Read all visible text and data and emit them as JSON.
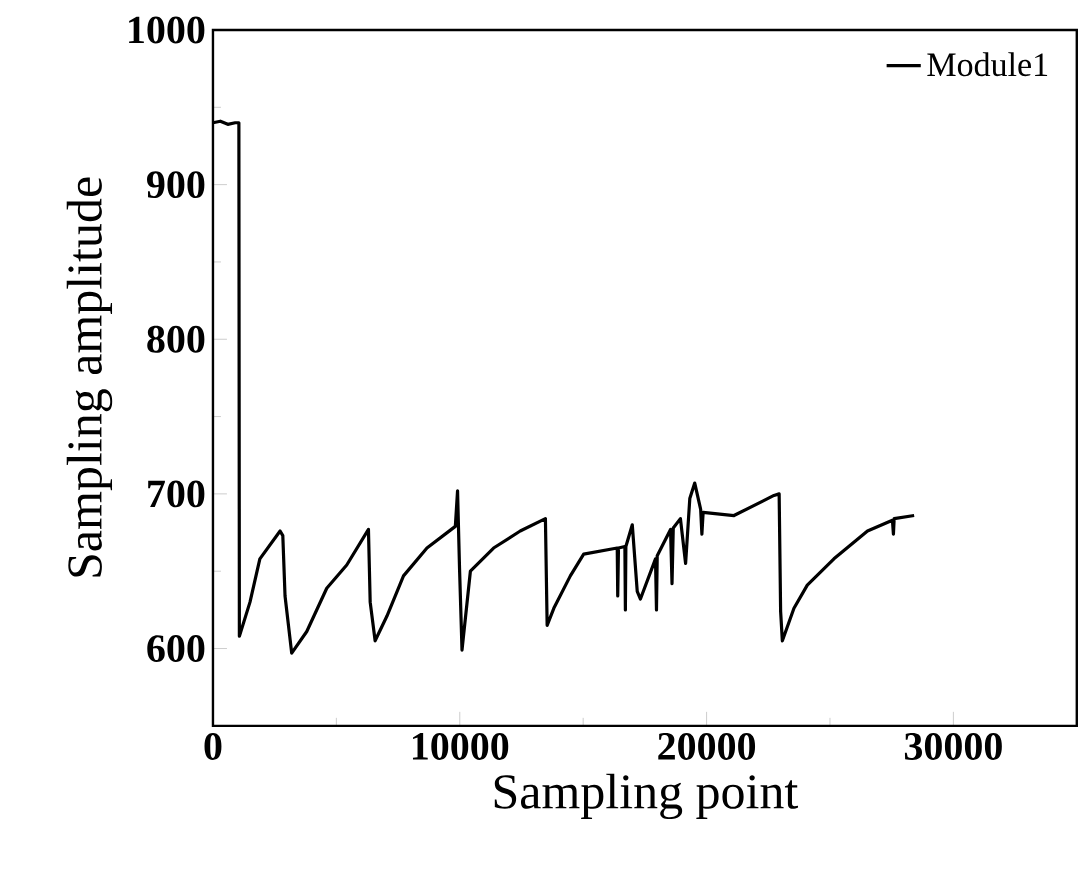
{
  "chart_data": {
    "type": "line",
    "xlabel": "Sampling point",
    "ylabel": "Sampling amplitude",
    "xlim": [
      0,
      35000
    ],
    "ylim": [
      550,
      1000
    ],
    "xticks": [
      0,
      10000,
      20000,
      30000
    ],
    "yticks": [
      600,
      700,
      800,
      900,
      1000
    ],
    "legend": "top right",
    "grid": false,
    "marker": "none",
    "line_style": "solid",
    "series": [
      {
        "name": "Module1",
        "color": "#000000",
        "x": [
          0,
          300,
          600,
          900,
          1050,
          1070,
          1500,
          1900,
          2720,
          2830,
          2920,
          3190,
          3800,
          4610,
          5420,
          6300,
          6370,
          6570,
          7050,
          7720,
          8670,
          9820,
          9910,
          9990,
          10090,
          10430,
          11370,
          12450,
          13470,
          13540,
          13810,
          14480,
          15020,
          16380,
          16400,
          16430,
          16690,
          16710,
          16730,
          16990,
          17190,
          17320,
          17930,
          17970,
          18000,
          18540,
          18600,
          18650,
          18940,
          19150,
          19320,
          19520,
          19760,
          19810,
          19860,
          21110,
          22730,
          22940,
          23000,
          23070,
          23540,
          24080,
          25160,
          26520,
          27530,
          27570,
          27600,
          28410
        ],
        "values": [
          940,
          941,
          939,
          940,
          940,
          608,
          630,
          658,
          676,
          673,
          634,
          597,
          611,
          639,
          654,
          677,
          630,
          605,
          621,
          647,
          665,
          679,
          702,
          652,
          599,
          650,
          665,
          676,
          684,
          615,
          626,
          647,
          661,
          665,
          634,
          665,
          666,
          625,
          666,
          680,
          637,
          632,
          658,
          625,
          660,
          677,
          642,
          678,
          684,
          655,
          697,
          707,
          690,
          674,
          688,
          686,
          699,
          700,
          624,
          605,
          626,
          641,
          658,
          676,
          683,
          674,
          684,
          686
        ]
      }
    ]
  }
}
